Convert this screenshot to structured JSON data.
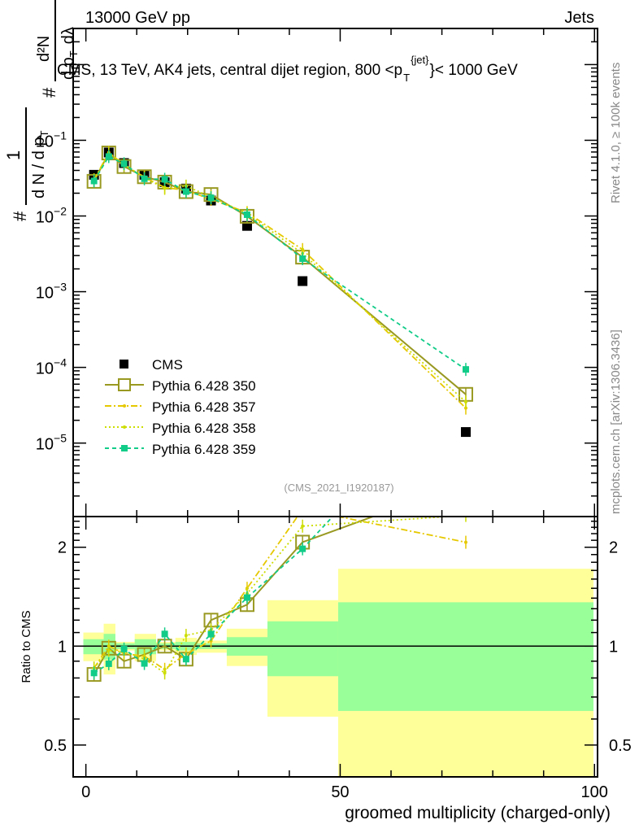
{
  "header": {
    "left": "13000 GeV pp",
    "right": "Jets"
  },
  "title": {
    "main": "CMS, 13 TeV, AK4 jets, central dijet region, 800 <p",
    "sub": "T",
    "sup": "{jet}",
    "end": "}< 1000 GeV"
  },
  "side_labels": {
    "rivet": "Rivet 4.1.0, ≥ 100k events",
    "mcplots": "mcplots.cern.ch [arXiv:1306.3436]"
  },
  "analysis_id": "(CMS_2021_I1920187)",
  "ylabel": {
    "num1": "1",
    "den1": "d N / d p",
    "den1_sub": "T",
    "hash": "#",
    "num2": "d²N",
    "den2": "d p",
    "den2_sub": "T",
    "den2_end": "dλ"
  },
  "colors": {
    "cms": "#000000",
    "p350": "#999922",
    "p357": "#e6c800",
    "p358": "#ccdd00",
    "p359": "#11cc88",
    "band_yellow": "#ffff99",
    "band_green": "#99ff99"
  },
  "chart_data": {
    "type": "line",
    "xlabel": "groomed multiplicity (charged-only)",
    "ylabel_ratio": "Ratio to CMS",
    "xlim": [
      -2.5,
      100.6
    ],
    "ylim_main": [
      1.07e-06,
      3.0
    ],
    "ylim_ratio": [
      0.4,
      2.48
    ],
    "x_ticks": [
      0,
      50,
      100
    ],
    "y_ticks_main": [
      {
        "v": 1e-05,
        "b": "10",
        "e": "−5"
      },
      {
        "v": 0.0001,
        "b": "10",
        "e": "−4"
      },
      {
        "v": 0.001,
        "b": "10",
        "e": "−3"
      },
      {
        "v": 0.01,
        "b": "10",
        "e": "−2"
      },
      {
        "v": 0.1,
        "b": "10",
        "e": "−1"
      }
    ],
    "y_ticks_ratio": [
      {
        "v": 0.5,
        "l": "0.5"
      },
      {
        "v": 1,
        "l": "1"
      },
      {
        "v": 2,
        "l": "2"
      }
    ],
    "x": [
      1.6,
      4.5,
      7.5,
      11.5,
      15.5,
      19.7,
      24.6,
      31.7,
      42.6,
      74.7
    ],
    "bin_edges": [
      -0.5,
      3.5,
      5.8,
      9.6,
      13.8,
      17.6,
      21.8,
      27.7,
      35.7,
      49.6,
      99.8
    ],
    "cms_band_1sigma": [
      [
        0.945,
        1.05
      ],
      [
        0.91,
        1.09
      ],
      [
        0.98,
        1.02
      ],
      [
        0.945,
        1.05
      ],
      [
        0.98,
        1.02
      ],
      [
        0.97,
        1.03
      ],
      [
        0.98,
        1.02
      ],
      [
        0.935,
        1.065
      ],
      [
        0.81,
        1.19
      ],
      [
        0.635,
        1.36
      ]
    ],
    "cms_band_2sigma": [
      [
        0.9,
        1.1
      ],
      [
        0.82,
        1.17
      ],
      [
        0.97,
        1.03
      ],
      [
        0.9,
        1.09
      ],
      [
        0.97,
        1.03
      ],
      [
        0.94,
        1.06
      ],
      [
        0.955,
        1.04
      ],
      [
        0.87,
        1.13
      ],
      [
        0.61,
        1.38
      ],
      [
        0.3,
        1.72
      ]
    ],
    "legend": {
      "placement": "lower-left"
    },
    "series": [
      {
        "name": "CMS",
        "key": "cms",
        "style": "marker",
        "values": [
          0.035,
          0.069,
          0.05,
          0.035,
          0.028,
          0.023,
          0.016,
          0.0074,
          0.00138,
          1.4e-05
        ]
      },
      {
        "name": "Pythia 6.428 350",
        "key": "p350",
        "style": "solid",
        "values": [
          0.0287,
          0.068,
          0.045,
          0.033,
          0.028,
          0.021,
          0.0192,
          0.0099,
          0.00286,
          4.4e-05
        ]
      },
      {
        "name": "Pythia 6.428 357",
        "key": "p357",
        "style": "dashdot",
        "values": [
          0.03,
          0.069,
          0.0475,
          0.0326,
          0.0238,
          0.0218,
          0.0166,
          0.0111,
          0.0036,
          2.9e-05
        ]
      },
      {
        "name": "Pythia 6.428 358",
        "key": "p358",
        "style": "dotted",
        "values": [
          0.03,
          0.067,
          0.048,
          0.032,
          0.0232,
          0.0248,
          0.0179,
          0.0107,
          0.0032,
          3.5e-05
        ]
      },
      {
        "name": "Pythia 6.428 359",
        "key": "p359",
        "style": "dashed",
        "values": [
          0.029,
          0.061,
          0.049,
          0.031,
          0.0305,
          0.021,
          0.0174,
          0.0104,
          0.00273,
          9.4e-05
        ]
      }
    ]
  }
}
